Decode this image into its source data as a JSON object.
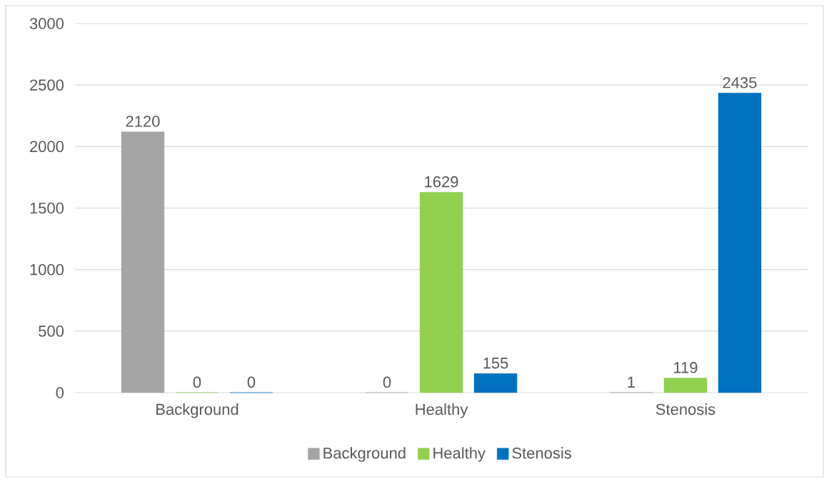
{
  "chart_data": {
    "type": "bar",
    "categories": [
      "Background",
      "Healthy",
      "Stenosis"
    ],
    "series": [
      {
        "name": "Background",
        "color": "#a5a5a5",
        "values": [
          2120,
          0,
          1
        ]
      },
      {
        "name": "Healthy",
        "color": "#92d050",
        "values": [
          0,
          1629,
          119
        ]
      },
      {
        "name": "Stenosis",
        "color": "#0070c0",
        "values": [
          0,
          155,
          2435
        ]
      }
    ],
    "ylim": [
      0,
      3000
    ],
    "yticks": [
      0,
      500,
      1000,
      1500,
      2000,
      2500,
      3000
    ],
    "grid": "y",
    "legend": "bottom",
    "data_labels": true
  }
}
